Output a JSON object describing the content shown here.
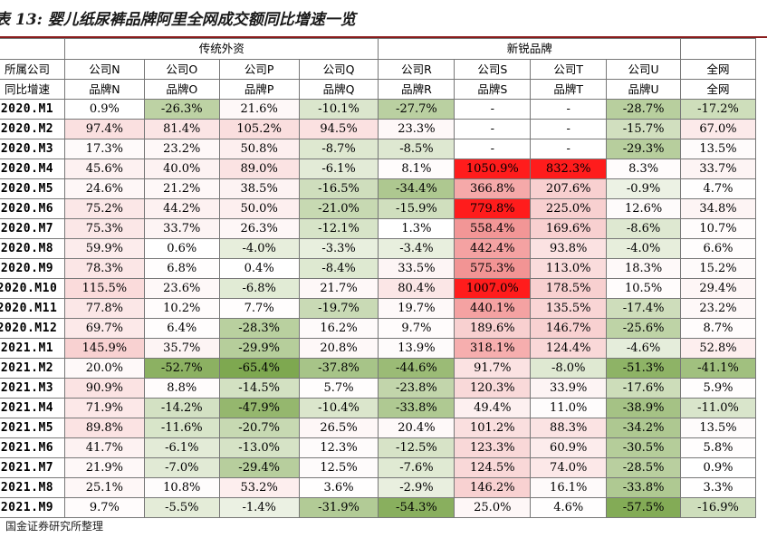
{
  "title": "表 13: 婴儿纸尿裤品牌阿里全网成交额同比增速一览",
  "source": "：国金证券研究所整理",
  "groups": [
    {
      "label": "",
      "span": 1
    },
    {
      "label": "传统外资",
      "span": 4
    },
    {
      "label": "新锐品牌",
      "span": 4
    },
    {
      "label": "",
      "span": 1
    }
  ],
  "header_row1": [
    "所属公司",
    "公司N",
    "公司O",
    "公司P",
    "公司Q",
    "公司R",
    "公司S",
    "公司T",
    "公司U",
    "全网"
  ],
  "header_row2": [
    "同比增速",
    "品牌N",
    "品牌O",
    "品牌P",
    "品牌Q",
    "品牌R",
    "品牌S",
    "品牌T",
    "品牌U",
    "全网"
  ],
  "rows": [
    {
      "label": "2020.M1",
      "values": [
        "0.9%",
        "-26.3%",
        "21.6%",
        "-10.1%",
        "-27.7%",
        "-",
        "-",
        "-28.7%",
        "-17.2%"
      ]
    },
    {
      "label": "2020.M2",
      "values": [
        "97.4%",
        "81.4%",
        "105.2%",
        "94.5%",
        "23.3%",
        "-",
        "-",
        "-15.7%",
        "67.0%"
      ]
    },
    {
      "label": "2020.M3",
      "values": [
        "17.3%",
        "23.2%",
        "50.8%",
        "-8.7%",
        "-8.5%",
        "-",
        "-",
        "-29.3%",
        "13.5%"
      ]
    },
    {
      "label": "2020.M4",
      "values": [
        "45.6%",
        "40.0%",
        "89.0%",
        "-6.1%",
        "8.1%",
        "1050.9%",
        "832.3%",
        "8.3%",
        "33.7%"
      ]
    },
    {
      "label": "2020.M5",
      "values": [
        "24.6%",
        "21.2%",
        "38.5%",
        "-16.5%",
        "-34.4%",
        "366.8%",
        "207.6%",
        "-0.9%",
        "4.7%"
      ]
    },
    {
      "label": "2020.M6",
      "values": [
        "75.2%",
        "44.2%",
        "50.0%",
        "-21.0%",
        "-15.9%",
        "779.8%",
        "225.0%",
        "12.6%",
        "34.8%"
      ]
    },
    {
      "label": "2020.M7",
      "values": [
        "75.3%",
        "33.7%",
        "26.3%",
        "-12.1%",
        "1.3%",
        "558.4%",
        "169.6%",
        "-8.6%",
        "10.7%"
      ]
    },
    {
      "label": "2020.M8",
      "values": [
        "59.9%",
        "0.6%",
        "-4.0%",
        "-3.3%",
        "-3.4%",
        "442.4%",
        "93.8%",
        "-4.0%",
        "6.6%"
      ]
    },
    {
      "label": "2020.M9",
      "values": [
        "78.3%",
        "6.8%",
        "0.4%",
        "-8.4%",
        "33.5%",
        "575.3%",
        "113.0%",
        "18.3%",
        "15.2%"
      ]
    },
    {
      "label": "2020.M10",
      "values": [
        "115.5%",
        "23.6%",
        "-6.8%",
        "21.7%",
        "80.4%",
        "1007.0%",
        "178.5%",
        "10.5%",
        "29.4%"
      ]
    },
    {
      "label": "2020.M11",
      "values": [
        "77.8%",
        "10.2%",
        "7.7%",
        "-19.7%",
        "19.7%",
        "440.1%",
        "135.5%",
        "-17.4%",
        "23.2%"
      ]
    },
    {
      "label": "2020.M12",
      "values": [
        "69.7%",
        "6.4%",
        "-28.3%",
        "16.2%",
        "9.7%",
        "189.6%",
        "146.7%",
        "-25.6%",
        "8.7%"
      ]
    },
    {
      "label": "2021.M1",
      "values": [
        "145.9%",
        "35.7%",
        "-29.9%",
        "20.8%",
        "13.9%",
        "318.1%",
        "124.4%",
        "-4.6%",
        "52.8%"
      ]
    },
    {
      "label": "2021.M2",
      "values": [
        "20.0%",
        "-52.7%",
        "-65.4%",
        "-37.8%",
        "-44.6%",
        "91.7%",
        "-8.0%",
        "-51.3%",
        "-41.1%"
      ]
    },
    {
      "label": "2021.M3",
      "values": [
        "90.9%",
        "8.8%",
        "-14.5%",
        "5.7%",
        "-23.8%",
        "120.3%",
        "33.9%",
        "-17.6%",
        "5.9%"
      ]
    },
    {
      "label": "2021.M4",
      "values": [
        "71.9%",
        "-14.2%",
        "-47.9%",
        "-10.4%",
        "-33.8%",
        "49.4%",
        "11.0%",
        "-38.9%",
        "-11.0%"
      ]
    },
    {
      "label": "2021.M5",
      "values": [
        "89.8%",
        "-11.6%",
        "-20.7%",
        "26.5%",
        "20.4%",
        "101.2%",
        "88.3%",
        "-34.2%",
        "13.5%"
      ]
    },
    {
      "label": "2021.M6",
      "values": [
        "41.7%",
        "-6.1%",
        "-13.0%",
        "12.3%",
        "-12.5%",
        "123.3%",
        "60.9%",
        "-30.5%",
        "5.8%"
      ]
    },
    {
      "label": "2021.M7",
      "values": [
        "21.9%",
        "-7.0%",
        "-29.4%",
        "12.5%",
        "-7.6%",
        "124.5%",
        "74.0%",
        "-28.5%",
        "0.9%"
      ]
    },
    {
      "label": "2021.M8",
      "values": [
        "25.1%",
        "10.8%",
        "53.2%",
        "3.6%",
        "-2.9%",
        "146.2%",
        "16.1%",
        "-33.8%",
        "3.3%"
      ]
    },
    {
      "label": "2021.M9",
      "values": [
        "9.7%",
        "-5.5%",
        "-1.4%",
        "-31.9%",
        "-54.3%",
        "25.0%",
        "4.6%",
        "-57.5%",
        "-16.9%"
      ]
    }
  ],
  "colors": {
    "negative_max": "#7ea850",
    "negative_min": "#eef3e6",
    "positive_max": "#f8d0d0",
    "extreme_positive": "#ff1c1c",
    "neutral": "#ffffff",
    "title_rule": "#8a1c1c"
  }
}
